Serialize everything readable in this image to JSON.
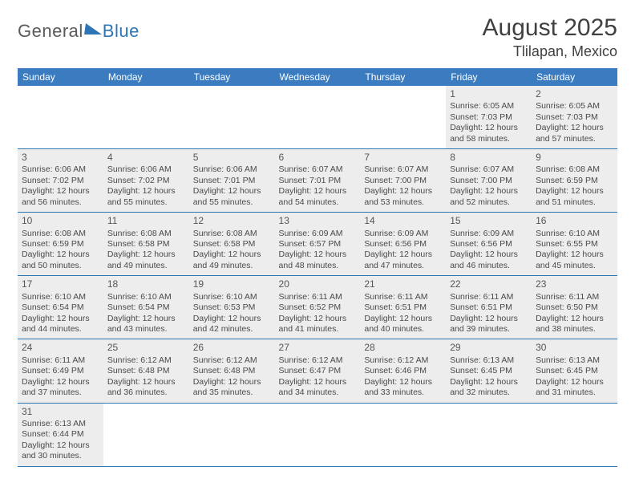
{
  "brand": {
    "part1": "General",
    "part2": "Blue"
  },
  "header": {
    "title": "August 2025",
    "location": "Tlilapan, Mexico"
  },
  "colors": {
    "header_bg": "#3a7cbf",
    "header_text": "#ffffff",
    "row_bg": "#ededed",
    "grid_line": "#2e75b6",
    "text": "#4a4a4a",
    "title_text": "#404040",
    "logo_gray": "#5a5a5a",
    "logo_blue": "#2e75b6",
    "page_bg": "#ffffff"
  },
  "columns": [
    "Sunday",
    "Monday",
    "Tuesday",
    "Wednesday",
    "Thursday",
    "Friday",
    "Saturday"
  ],
  "layout": {
    "first_weekday_index": 5,
    "days_in_month": 31
  },
  "days": {
    "1": {
      "sunrise": "6:05 AM",
      "sunset": "7:03 PM",
      "daylight": "12 hours and 58 minutes."
    },
    "2": {
      "sunrise": "6:05 AM",
      "sunset": "7:03 PM",
      "daylight": "12 hours and 57 minutes."
    },
    "3": {
      "sunrise": "6:06 AM",
      "sunset": "7:02 PM",
      "daylight": "12 hours and 56 minutes."
    },
    "4": {
      "sunrise": "6:06 AM",
      "sunset": "7:02 PM",
      "daylight": "12 hours and 55 minutes."
    },
    "5": {
      "sunrise": "6:06 AM",
      "sunset": "7:01 PM",
      "daylight": "12 hours and 55 minutes."
    },
    "6": {
      "sunrise": "6:07 AM",
      "sunset": "7:01 PM",
      "daylight": "12 hours and 54 minutes."
    },
    "7": {
      "sunrise": "6:07 AM",
      "sunset": "7:00 PM",
      "daylight": "12 hours and 53 minutes."
    },
    "8": {
      "sunrise": "6:07 AM",
      "sunset": "7:00 PM",
      "daylight": "12 hours and 52 minutes."
    },
    "9": {
      "sunrise": "6:08 AM",
      "sunset": "6:59 PM",
      "daylight": "12 hours and 51 minutes."
    },
    "10": {
      "sunrise": "6:08 AM",
      "sunset": "6:59 PM",
      "daylight": "12 hours and 50 minutes."
    },
    "11": {
      "sunrise": "6:08 AM",
      "sunset": "6:58 PM",
      "daylight": "12 hours and 49 minutes."
    },
    "12": {
      "sunrise": "6:08 AM",
      "sunset": "6:58 PM",
      "daylight": "12 hours and 49 minutes."
    },
    "13": {
      "sunrise": "6:09 AM",
      "sunset": "6:57 PM",
      "daylight": "12 hours and 48 minutes."
    },
    "14": {
      "sunrise": "6:09 AM",
      "sunset": "6:56 PM",
      "daylight": "12 hours and 47 minutes."
    },
    "15": {
      "sunrise": "6:09 AM",
      "sunset": "6:56 PM",
      "daylight": "12 hours and 46 minutes."
    },
    "16": {
      "sunrise": "6:10 AM",
      "sunset": "6:55 PM",
      "daylight": "12 hours and 45 minutes."
    },
    "17": {
      "sunrise": "6:10 AM",
      "sunset": "6:54 PM",
      "daylight": "12 hours and 44 minutes."
    },
    "18": {
      "sunrise": "6:10 AM",
      "sunset": "6:54 PM",
      "daylight": "12 hours and 43 minutes."
    },
    "19": {
      "sunrise": "6:10 AM",
      "sunset": "6:53 PM",
      "daylight": "12 hours and 42 minutes."
    },
    "20": {
      "sunrise": "6:11 AM",
      "sunset": "6:52 PM",
      "daylight": "12 hours and 41 minutes."
    },
    "21": {
      "sunrise": "6:11 AM",
      "sunset": "6:51 PM",
      "daylight": "12 hours and 40 minutes."
    },
    "22": {
      "sunrise": "6:11 AM",
      "sunset": "6:51 PM",
      "daylight": "12 hours and 39 minutes."
    },
    "23": {
      "sunrise": "6:11 AM",
      "sunset": "6:50 PM",
      "daylight": "12 hours and 38 minutes."
    },
    "24": {
      "sunrise": "6:11 AM",
      "sunset": "6:49 PM",
      "daylight": "12 hours and 37 minutes."
    },
    "25": {
      "sunrise": "6:12 AM",
      "sunset": "6:48 PM",
      "daylight": "12 hours and 36 minutes."
    },
    "26": {
      "sunrise": "6:12 AM",
      "sunset": "6:48 PM",
      "daylight": "12 hours and 35 minutes."
    },
    "27": {
      "sunrise": "6:12 AM",
      "sunset": "6:47 PM",
      "daylight": "12 hours and 34 minutes."
    },
    "28": {
      "sunrise": "6:12 AM",
      "sunset": "6:46 PM",
      "daylight": "12 hours and 33 minutes."
    },
    "29": {
      "sunrise": "6:13 AM",
      "sunset": "6:45 PM",
      "daylight": "12 hours and 32 minutes."
    },
    "30": {
      "sunrise": "6:13 AM",
      "sunset": "6:45 PM",
      "daylight": "12 hours and 31 minutes."
    },
    "31": {
      "sunrise": "6:13 AM",
      "sunset": "6:44 PM",
      "daylight": "12 hours and 30 minutes."
    }
  },
  "labels": {
    "sunrise": "Sunrise:",
    "sunset": "Sunset:",
    "daylight": "Daylight:"
  }
}
